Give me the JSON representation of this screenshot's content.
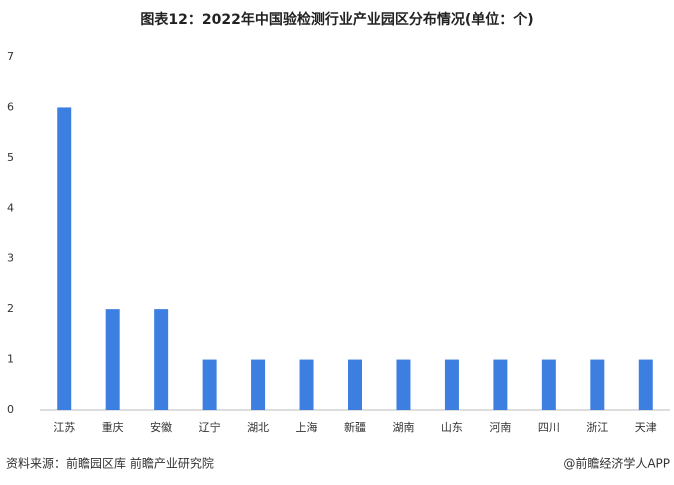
{
  "chart_data": {
    "type": "bar",
    "title": "图表12：2022年中国验检测行业产业园区分布情况(单位：个)",
    "categories": [
      "江苏",
      "重庆",
      "安徽",
      "辽宁",
      "湖北",
      "上海",
      "新疆",
      "湖南",
      "山东",
      "河南",
      "四川",
      "浙江",
      "天津"
    ],
    "values": [
      6,
      2,
      2,
      1,
      1,
      1,
      1,
      1,
      1,
      1,
      1,
      1,
      1
    ],
    "color": "#3d7fe0",
    "ylim": [
      0,
      7
    ],
    "yticks": [
      0,
      1,
      2,
      3,
      4,
      5,
      6,
      7
    ],
    "grid": false,
    "source": "资料来源：前瞻园区库 前瞻产业研究院",
    "credit": "@前瞻经济学人APP"
  }
}
